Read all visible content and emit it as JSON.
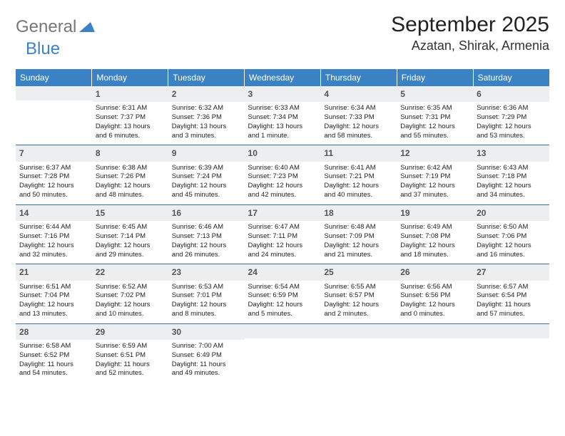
{
  "logo": {
    "general": "General",
    "blue": "Blue"
  },
  "title": "September 2025",
  "location": "Azatan, Shirak, Armenia",
  "header_bg": "#3b82c4",
  "header_fg": "#ffffff",
  "daynum_bg": "#eceef0",
  "row_border": "#3b6ea0",
  "weekdays": [
    "Sunday",
    "Monday",
    "Tuesday",
    "Wednesday",
    "Thursday",
    "Friday",
    "Saturday"
  ],
  "weeks": [
    [
      null,
      {
        "n": "1",
        "sr": "Sunrise: 6:31 AM",
        "ss": "Sunset: 7:37 PM",
        "d1": "Daylight: 13 hours",
        "d2": "and 6 minutes."
      },
      {
        "n": "2",
        "sr": "Sunrise: 6:32 AM",
        "ss": "Sunset: 7:36 PM",
        "d1": "Daylight: 13 hours",
        "d2": "and 3 minutes."
      },
      {
        "n": "3",
        "sr": "Sunrise: 6:33 AM",
        "ss": "Sunset: 7:34 PM",
        "d1": "Daylight: 13 hours",
        "d2": "and 1 minute."
      },
      {
        "n": "4",
        "sr": "Sunrise: 6:34 AM",
        "ss": "Sunset: 7:33 PM",
        "d1": "Daylight: 12 hours",
        "d2": "and 58 minutes."
      },
      {
        "n": "5",
        "sr": "Sunrise: 6:35 AM",
        "ss": "Sunset: 7:31 PM",
        "d1": "Daylight: 12 hours",
        "d2": "and 55 minutes."
      },
      {
        "n": "6",
        "sr": "Sunrise: 6:36 AM",
        "ss": "Sunset: 7:29 PM",
        "d1": "Daylight: 12 hours",
        "d2": "and 53 minutes."
      }
    ],
    [
      {
        "n": "7",
        "sr": "Sunrise: 6:37 AM",
        "ss": "Sunset: 7:28 PM",
        "d1": "Daylight: 12 hours",
        "d2": "and 50 minutes."
      },
      {
        "n": "8",
        "sr": "Sunrise: 6:38 AM",
        "ss": "Sunset: 7:26 PM",
        "d1": "Daylight: 12 hours",
        "d2": "and 48 minutes."
      },
      {
        "n": "9",
        "sr": "Sunrise: 6:39 AM",
        "ss": "Sunset: 7:24 PM",
        "d1": "Daylight: 12 hours",
        "d2": "and 45 minutes."
      },
      {
        "n": "10",
        "sr": "Sunrise: 6:40 AM",
        "ss": "Sunset: 7:23 PM",
        "d1": "Daylight: 12 hours",
        "d2": "and 42 minutes."
      },
      {
        "n": "11",
        "sr": "Sunrise: 6:41 AM",
        "ss": "Sunset: 7:21 PM",
        "d1": "Daylight: 12 hours",
        "d2": "and 40 minutes."
      },
      {
        "n": "12",
        "sr": "Sunrise: 6:42 AM",
        "ss": "Sunset: 7:19 PM",
        "d1": "Daylight: 12 hours",
        "d2": "and 37 minutes."
      },
      {
        "n": "13",
        "sr": "Sunrise: 6:43 AM",
        "ss": "Sunset: 7:18 PM",
        "d1": "Daylight: 12 hours",
        "d2": "and 34 minutes."
      }
    ],
    [
      {
        "n": "14",
        "sr": "Sunrise: 6:44 AM",
        "ss": "Sunset: 7:16 PM",
        "d1": "Daylight: 12 hours",
        "d2": "and 32 minutes."
      },
      {
        "n": "15",
        "sr": "Sunrise: 6:45 AM",
        "ss": "Sunset: 7:14 PM",
        "d1": "Daylight: 12 hours",
        "d2": "and 29 minutes."
      },
      {
        "n": "16",
        "sr": "Sunrise: 6:46 AM",
        "ss": "Sunset: 7:13 PM",
        "d1": "Daylight: 12 hours",
        "d2": "and 26 minutes."
      },
      {
        "n": "17",
        "sr": "Sunrise: 6:47 AM",
        "ss": "Sunset: 7:11 PM",
        "d1": "Daylight: 12 hours",
        "d2": "and 24 minutes."
      },
      {
        "n": "18",
        "sr": "Sunrise: 6:48 AM",
        "ss": "Sunset: 7:09 PM",
        "d1": "Daylight: 12 hours",
        "d2": "and 21 minutes."
      },
      {
        "n": "19",
        "sr": "Sunrise: 6:49 AM",
        "ss": "Sunset: 7:08 PM",
        "d1": "Daylight: 12 hours",
        "d2": "and 18 minutes."
      },
      {
        "n": "20",
        "sr": "Sunrise: 6:50 AM",
        "ss": "Sunset: 7:06 PM",
        "d1": "Daylight: 12 hours",
        "d2": "and 16 minutes."
      }
    ],
    [
      {
        "n": "21",
        "sr": "Sunrise: 6:51 AM",
        "ss": "Sunset: 7:04 PM",
        "d1": "Daylight: 12 hours",
        "d2": "and 13 minutes."
      },
      {
        "n": "22",
        "sr": "Sunrise: 6:52 AM",
        "ss": "Sunset: 7:02 PM",
        "d1": "Daylight: 12 hours",
        "d2": "and 10 minutes."
      },
      {
        "n": "23",
        "sr": "Sunrise: 6:53 AM",
        "ss": "Sunset: 7:01 PM",
        "d1": "Daylight: 12 hours",
        "d2": "and 8 minutes."
      },
      {
        "n": "24",
        "sr": "Sunrise: 6:54 AM",
        "ss": "Sunset: 6:59 PM",
        "d1": "Daylight: 12 hours",
        "d2": "and 5 minutes."
      },
      {
        "n": "25",
        "sr": "Sunrise: 6:55 AM",
        "ss": "Sunset: 6:57 PM",
        "d1": "Daylight: 12 hours",
        "d2": "and 2 minutes."
      },
      {
        "n": "26",
        "sr": "Sunrise: 6:56 AM",
        "ss": "Sunset: 6:56 PM",
        "d1": "Daylight: 12 hours",
        "d2": "and 0 minutes."
      },
      {
        "n": "27",
        "sr": "Sunrise: 6:57 AM",
        "ss": "Sunset: 6:54 PM",
        "d1": "Daylight: 11 hours",
        "d2": "and 57 minutes."
      }
    ],
    [
      {
        "n": "28",
        "sr": "Sunrise: 6:58 AM",
        "ss": "Sunset: 6:52 PM",
        "d1": "Daylight: 11 hours",
        "d2": "and 54 minutes."
      },
      {
        "n": "29",
        "sr": "Sunrise: 6:59 AM",
        "ss": "Sunset: 6:51 PM",
        "d1": "Daylight: 11 hours",
        "d2": "and 52 minutes."
      },
      {
        "n": "30",
        "sr": "Sunrise: 7:00 AM",
        "ss": "Sunset: 6:49 PM",
        "d1": "Daylight: 11 hours",
        "d2": "and 49 minutes."
      },
      null,
      null,
      null,
      null
    ]
  ]
}
